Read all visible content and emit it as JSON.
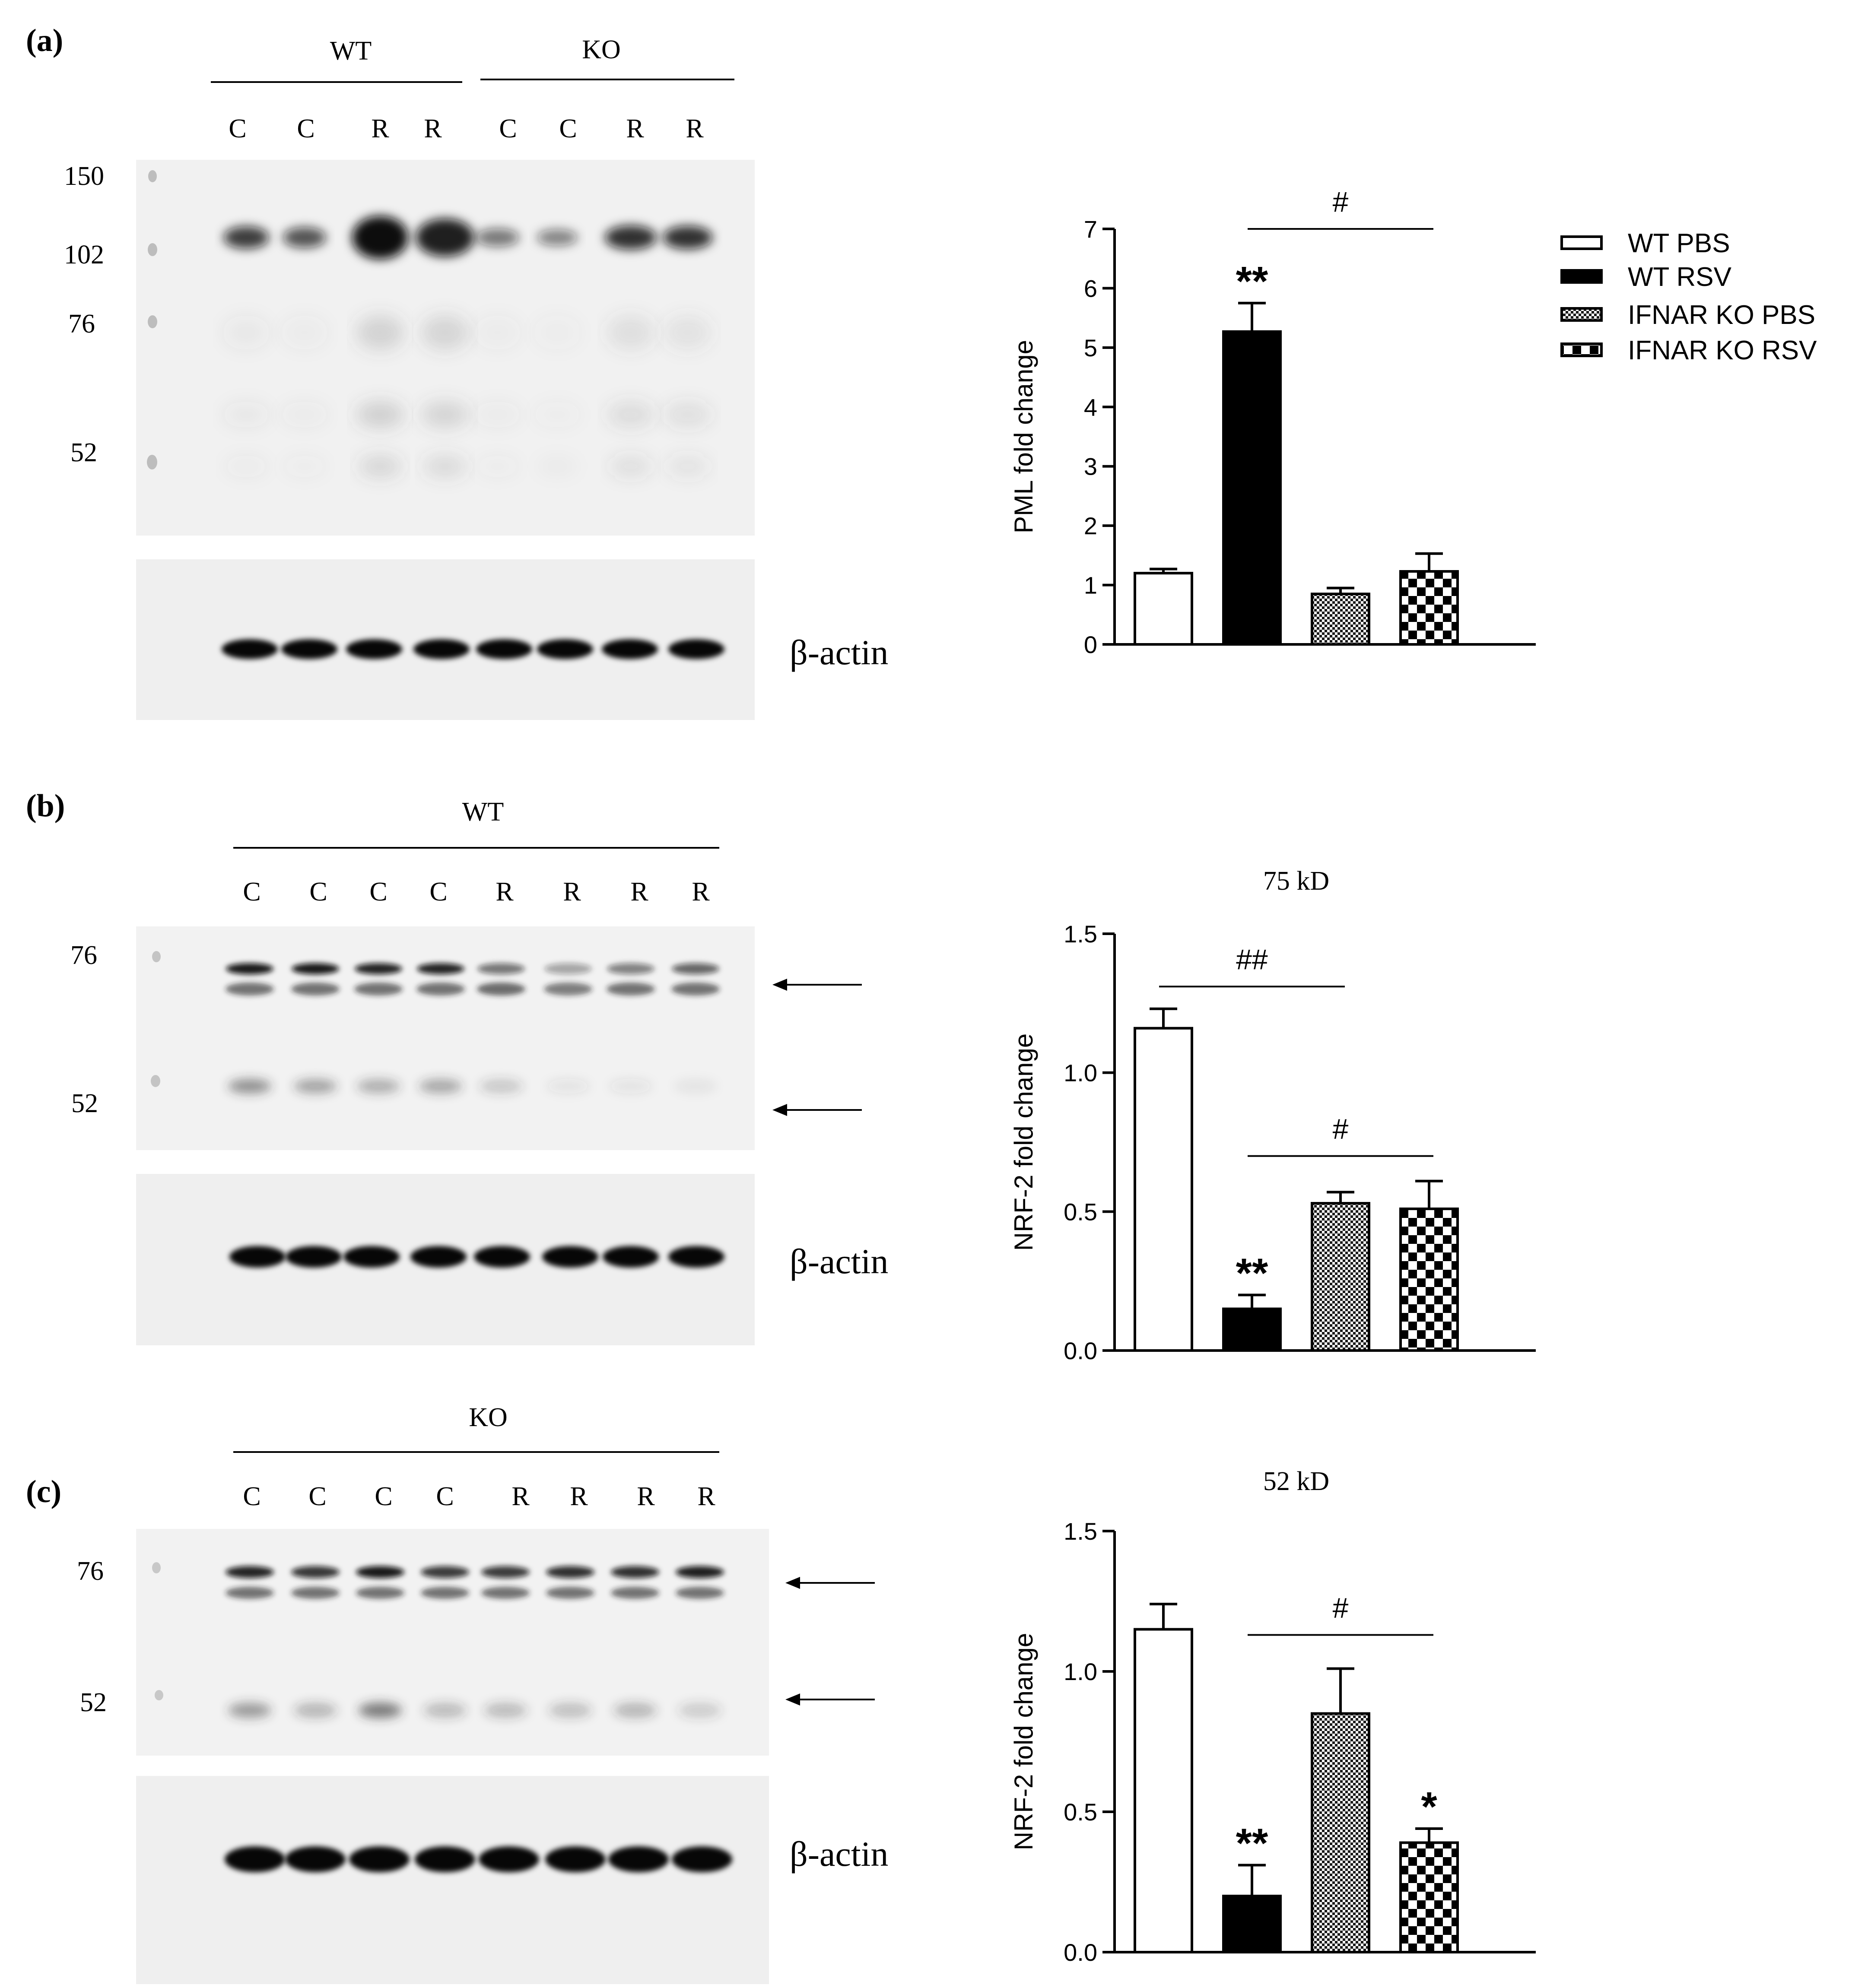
{
  "panels": [
    {
      "label": "(a)",
      "blot": {
        "group_labels": [
          "WT",
          "KO"
        ],
        "lane_labels": [
          "C",
          "C",
          "R",
          "R",
          "C",
          "C",
          "R",
          "R"
        ],
        "markers": [
          "150",
          "102",
          "76",
          "52"
        ],
        "actin_label": "β-actin"
      },
      "bar_colors": [
        "#ffffff",
        "#000000",
        "#9e9e9e",
        "#d8d8d8"
      ]
    },
    {
      "label": "(b)",
      "blot": {
        "group_labels": [
          "WT"
        ],
        "lane_labels": [
          "C",
          "C",
          "C",
          "C",
          "R",
          "R",
          "R",
          "R"
        ],
        "markers": [
          "76",
          "52"
        ],
        "actin_label": "β-actin"
      }
    },
    {
      "label": "(c)",
      "blot": {
        "group_labels": [
          "KO"
        ],
        "lane_labels": [
          "C",
          "C",
          "C",
          "C",
          "R",
          "R",
          "R",
          "R"
        ],
        "markers": [
          "76",
          "52"
        ],
        "actin_label": "β-actin"
      }
    }
  ],
  "legend": [
    "WT PBS",
    "WT RSV",
    "IFNAR KO PBS",
    "IFNAR KO RSV"
  ],
  "chart_data": [
    {
      "type": "bar",
      "title": "",
      "ylabel": "PML fold change",
      "ylim": [
        0,
        7
      ],
      "yticks": [
        "0",
        "1",
        "2",
        "3",
        "4",
        "5",
        "6",
        "7"
      ],
      "categories": [
        "WT PBS",
        "WT RSV",
        "IFNAR KO PBS",
        "IFNAR KO RSV"
      ],
      "values": [
        1.2,
        5.27,
        0.85,
        1.23
      ],
      "errors": [
        0.07,
        0.48,
        0.1,
        0.3
      ],
      "annotations": [
        "",
        "**",
        "",
        ""
      ],
      "brackets": [
        {
          "from": 1,
          "to": 3,
          "label": "#",
          "y": 7.0
        }
      ]
    },
    {
      "type": "bar",
      "title": "75 kD",
      "ylabel": "NRF-2 fold change",
      "ylim": [
        0,
        1.5
      ],
      "yticks": [
        "0.0",
        "0.5",
        "1.0",
        "1.5"
      ],
      "categories": [
        "WT PBS",
        "WT RSV",
        "IFNAR KO PBS",
        "IFNAR KO RSV"
      ],
      "values": [
        1.16,
        0.15,
        0.53,
        0.51
      ],
      "errors": [
        0.07,
        0.05,
        0.04,
        0.1
      ],
      "annotations": [
        "",
        "**",
        "",
        ""
      ],
      "brackets": [
        {
          "from": 0,
          "to": 2,
          "label": "##",
          "y": 1.31
        },
        {
          "from": 1,
          "to": 3,
          "label": "#",
          "y": 0.7
        }
      ]
    },
    {
      "type": "bar",
      "title": "52 kD",
      "ylabel": "NRF-2 fold change",
      "ylim": [
        0,
        1.5
      ],
      "yticks": [
        "0.0",
        "0.5",
        "1.0",
        "1.5"
      ],
      "categories": [
        "WT PBS",
        "WT RSV",
        "IFNAR KO PBS",
        "IFNAR KO RSV"
      ],
      "values": [
        1.15,
        0.2,
        0.85,
        0.39
      ],
      "errors": [
        0.09,
        0.11,
        0.16,
        0.05
      ],
      "annotations": [
        "",
        "**",
        "",
        "*"
      ],
      "brackets": [
        {
          "from": 1,
          "to": 3,
          "label": "#",
          "y": 1.13
        }
      ]
    }
  ]
}
